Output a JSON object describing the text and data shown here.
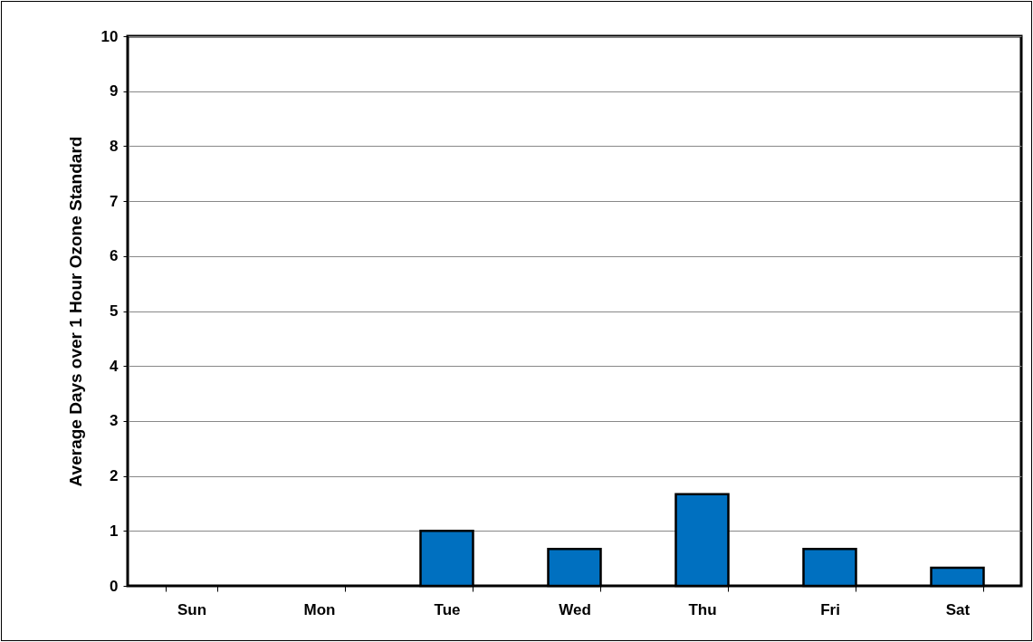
{
  "chart_data": {
    "type": "bar",
    "ylabel": "Average Days over 1 Hour Ozone  Standard",
    "categories": [
      "Sun",
      "Mon",
      "Tue",
      "Wed",
      "Thu",
      "Fri",
      "Sat"
    ],
    "values": [
      0,
      0,
      1,
      0.67,
      1.67,
      0.67,
      0.33
    ],
    "color": "#0070c0",
    "ylim": [
      0,
      10
    ],
    "yticks": [
      0,
      1,
      2,
      3,
      4,
      5,
      6,
      7,
      8,
      9,
      10
    ],
    "grid": "y"
  }
}
